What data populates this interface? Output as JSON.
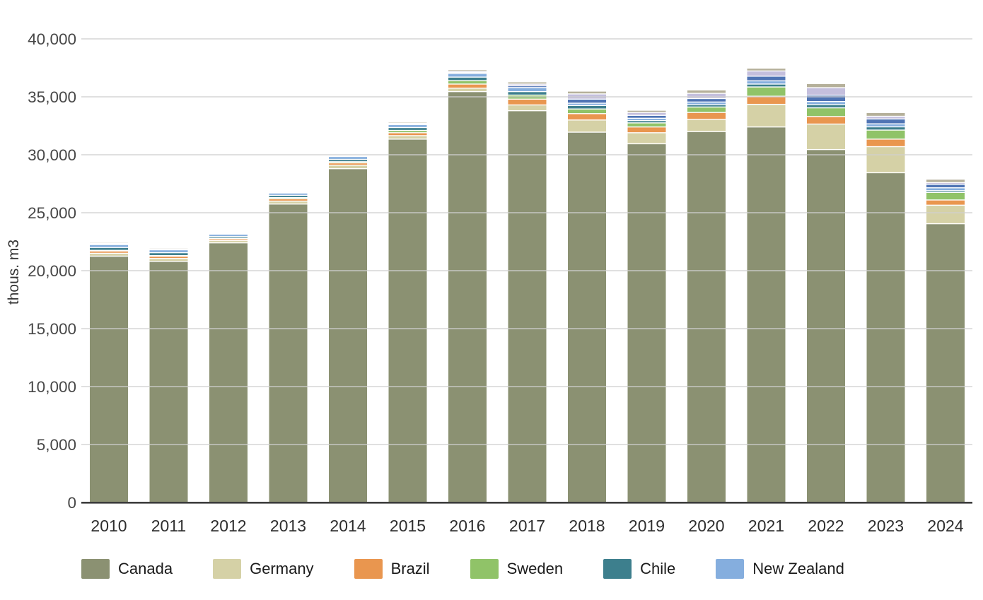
{
  "chart_data": {
    "type": "bar",
    "subtype": "stacked-vertical",
    "title": "",
    "xlabel": "",
    "ylabel": "thous. m3",
    "ylim": [
      0,
      40000
    ],
    "ytick_step": 5000,
    "ytick_labels": [
      "0",
      "5,000",
      "10,000",
      "15,000",
      "20,000",
      "25,000",
      "30,000",
      "35,000",
      "40,000"
    ],
    "grid": "horizontal",
    "legend_position": "bottom",
    "categories": [
      "2010",
      "2011",
      "2012",
      "2013",
      "2014",
      "2015",
      "2016",
      "2017",
      "2018",
      "2019",
      "2020",
      "2021",
      "2022",
      "2023",
      "2024"
    ],
    "series": [
      {
        "name": "Canada",
        "color": "#8b9172",
        "values": [
          21250,
          20800,
          22400,
          25750,
          28800,
          31350,
          35450,
          33800,
          31950,
          30950,
          32000,
          32400,
          30450,
          28450,
          24050
        ]
      },
      {
        "name": "Germany",
        "color": "#d5d1a6",
        "values": [
          250,
          250,
          200,
          250,
          300,
          300,
          300,
          500,
          1050,
          950,
          1050,
          1950,
          2200,
          2250,
          1600
        ]
      },
      {
        "name": "Brazil",
        "color": "#e9964f",
        "values": [
          200,
          200,
          150,
          200,
          200,
          250,
          350,
          500,
          550,
          500,
          600,
          700,
          650,
          650,
          450
        ]
      },
      {
        "name": "Sweden",
        "color": "#90c368",
        "values": [
          50,
          50,
          50,
          100,
          100,
          200,
          300,
          350,
          400,
          350,
          470,
          800,
          750,
          780,
          650
        ]
      },
      {
        "name": "Chile",
        "color": "#3d7f8d",
        "values": [
          250,
          250,
          150,
          200,
          200,
          250,
          300,
          300,
          300,
          200,
          200,
          250,
          280,
          280,
          150
        ]
      },
      {
        "name": "New Zealand",
        "color": "#85aede",
        "values": [
          250,
          250,
          200,
          200,
          250,
          250,
          300,
          350,
          200,
          200,
          230,
          280,
          260,
          260,
          250
        ]
      }
    ],
    "unlabeled_series": [
      {
        "color": "#4f74b4",
        "values": [
          50,
          50,
          40,
          40,
          60,
          70,
          100,
          150,
          350,
          250,
          300,
          400,
          550,
          420,
          300
        ]
      },
      {
        "color": "#c4bfdd",
        "values": [
          50,
          50,
          30,
          30,
          45,
          65,
          100,
          150,
          450,
          250,
          450,
          450,
          650,
          230,
          150
        ]
      },
      {
        "color": "#b5b09a",
        "values": [
          50,
          50,
          30,
          30,
          45,
          65,
          100,
          150,
          200,
          150,
          250,
          200,
          310,
          280,
          250
        ]
      }
    ],
    "totals": [
      22400,
      21950,
      23250,
      26800,
      30000,
      32800,
      37300,
      36250,
      35450,
      33800,
      35550,
      37430,
      36100,
      33600,
      27850
    ]
  }
}
